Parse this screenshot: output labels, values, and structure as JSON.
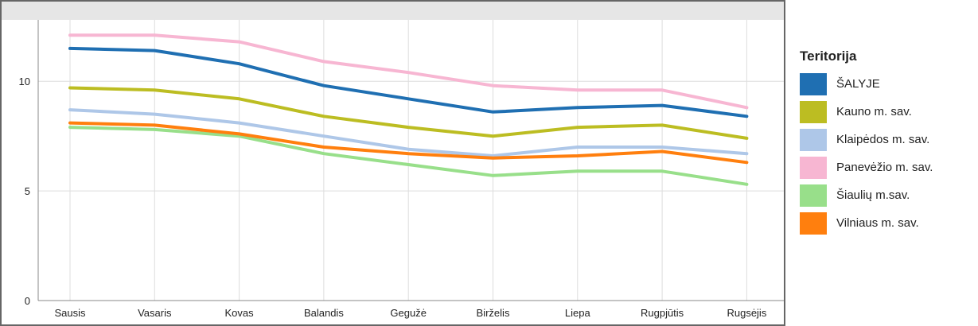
{
  "chart_data": {
    "type": "line",
    "title": "",
    "xlabel": "",
    "ylabel": "",
    "categories": [
      "Sausis",
      "Vasaris",
      "Kovas",
      "Balandis",
      "Gegužė",
      "Birželis",
      "Liepa",
      "Rugpjūtis",
      "Rugsėjis"
    ],
    "yticks": [
      "0",
      "5",
      "10"
    ],
    "ylim": [
      0,
      12.8
    ],
    "grid": true,
    "legend_position": "right",
    "legend_title": "Teritorija",
    "series": [
      {
        "name": "ŠALYJE",
        "color": "#1f6fb2",
        "values": [
          11.5,
          11.4,
          10.8,
          9.8,
          9.2,
          8.6,
          8.8,
          8.9,
          8.4
        ]
      },
      {
        "name": "Kauno m. sav.",
        "color": "#bcbd22",
        "values": [
          9.7,
          9.6,
          9.2,
          8.4,
          7.9,
          7.5,
          7.9,
          8.0,
          7.4
        ]
      },
      {
        "name": "Klaipėdos m. sav.",
        "color": "#aec7e8",
        "values": [
          8.7,
          8.5,
          8.1,
          7.5,
          6.9,
          6.6,
          7.0,
          7.0,
          6.7
        ]
      },
      {
        "name": "Panevėžio m. sav.",
        "color": "#f7b6d2",
        "values": [
          12.1,
          12.1,
          11.8,
          10.9,
          10.4,
          9.8,
          9.6,
          9.6,
          8.8
        ]
      },
      {
        "name": "Šiaulių m.sav.",
        "color": "#98df8a",
        "values": [
          7.9,
          7.8,
          7.5,
          6.7,
          6.2,
          5.7,
          5.9,
          5.9,
          5.3
        ]
      },
      {
        "name": "Vilniaus m. sav.",
        "color": "#ff7f0e",
        "values": [
          8.1,
          8.0,
          7.6,
          7.0,
          6.7,
          6.5,
          6.6,
          6.8,
          6.3
        ]
      }
    ]
  }
}
